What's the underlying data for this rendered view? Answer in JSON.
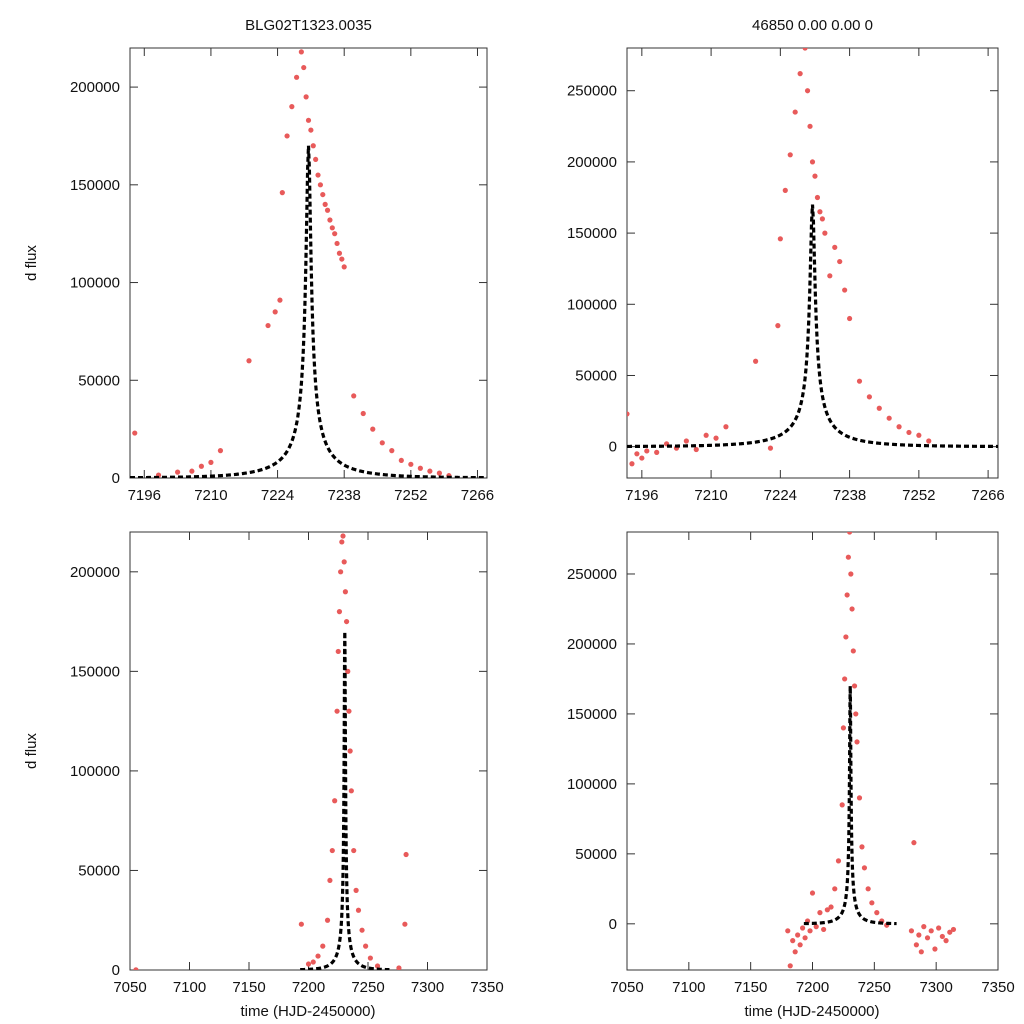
{
  "figure": {
    "top_title_left": "BLG02T1323.0035",
    "top_title_right": "46850  0.00  0.00  0",
    "ylabel": "d flux",
    "xlabel": "time (HJD-2450000)",
    "point_color": "#e85a5a",
    "curve_color": "#000000"
  },
  "chart_data": [
    {
      "id": "top-left",
      "type": "scatter",
      "title": "BLG02T1323.0035",
      "ylabel": "d flux",
      "xlabel": "",
      "xlim": [
        7193,
        7268
      ],
      "ylim": [
        0,
        220000
      ],
      "xticks": [
        7196,
        7210,
        7224,
        7238,
        7252,
        7266
      ],
      "yticks": [
        0,
        50000,
        100000,
        150000,
        200000
      ],
      "model": {
        "t0": 7230.5,
        "tE": 15,
        "u0": 0.032,
        "amp_at_peak": 170000,
        "xrange": [
          7193,
          7268
        ]
      },
      "series": [
        {
          "name": "data",
          "x": [
            7194,
            7199,
            7203,
            7206,
            7208,
            7210,
            7212,
            7218,
            7222,
            7223.5,
            7224.5,
            7225,
            7226,
            7227,
            7228,
            7229,
            7229.5,
            7230,
            7230.5,
            7231,
            7231.5,
            7232,
            7232.5,
            7233,
            7233.5,
            7234,
            7234.5,
            7235,
            7235.5,
            7236,
            7236.5,
            7237,
            7237.5,
            7238,
            7240,
            7242,
            7244,
            7246,
            7248,
            7250,
            7252,
            7254,
            7256,
            7258,
            7260
          ],
          "y": [
            23000,
            1500,
            3000,
            3500,
            6000,
            8000,
            14000,
            60000,
            78000,
            85000,
            91000,
            146000,
            175000,
            190000,
            205000,
            218000,
            210000,
            195000,
            183000,
            178000,
            170000,
            163000,
            155000,
            150000,
            145000,
            140000,
            137000,
            132000,
            128000,
            125000,
            120000,
            115000,
            112000,
            108000,
            42000,
            33000,
            25000,
            18000,
            14000,
            9000,
            7000,
            5000,
            3500,
            2500,
            1200
          ]
        }
      ]
    },
    {
      "id": "top-right",
      "type": "scatter",
      "title": "46850  0.00  0.00  0",
      "ylabel": "",
      "xlabel": "",
      "xlim": [
        7193,
        7268
      ],
      "ylim": [
        -22000,
        280000
      ],
      "xticks": [
        7196,
        7210,
        7224,
        7238,
        7252,
        7266
      ],
      "yticks": [
        0,
        50000,
        100000,
        150000,
        200000,
        250000
      ],
      "model": {
        "t0": 7230.5,
        "tE": 15,
        "u0": 0.032,
        "amp_at_peak": 170000,
        "xrange": [
          7193,
          7268
        ]
      },
      "series": [
        {
          "name": "data",
          "x": [
            7193,
            7194,
            7195,
            7196,
            7197,
            7199,
            7201,
            7203,
            7205,
            7207,
            7209,
            7211,
            7213,
            7219,
            7222,
            7223.5,
            7224,
            7225,
            7226,
            7227,
            7228,
            7229,
            7229.5,
            7230,
            7230.5,
            7231,
            7231.5,
            7232,
            7232.5,
            7233,
            7234,
            7235,
            7236,
            7237,
            7238,
            7240,
            7242,
            7244,
            7246,
            7248,
            7250,
            7252,
            7254
          ],
          "y": [
            23000,
            -12000,
            -5000,
            -8000,
            -3000,
            -4000,
            2000,
            -1000,
            4000,
            -2000,
            8000,
            6000,
            14000,
            60000,
            -1000,
            85000,
            146000,
            180000,
            205000,
            235000,
            262000,
            280000,
            250000,
            225000,
            200000,
            190000,
            175000,
            165000,
            160000,
            150000,
            120000,
            140000,
            130000,
            110000,
            90000,
            46000,
            35000,
            27000,
            20000,
            14000,
            10000,
            8000,
            4000
          ]
        }
      ]
    },
    {
      "id": "bottom-left",
      "type": "scatter",
      "title": "",
      "ylabel": "d flux",
      "xlabel": "time (HJD-2450000)",
      "xlim": [
        7050,
        7350
      ],
      "ylim": [
        0,
        220000
      ],
      "xticks": [
        7050,
        7100,
        7150,
        7200,
        7250,
        7300,
        7350
      ],
      "yticks": [
        0,
        50000,
        100000,
        150000,
        200000
      ],
      "model": {
        "t0": 7230.5,
        "tE": 15,
        "u0": 0.032,
        "amp_at_peak": 170000,
        "xrange": [
          7193,
          7268
        ]
      },
      "series": [
        {
          "name": "data",
          "x": [
            7055,
            7194,
            7200,
            7204,
            7208,
            7212,
            7216,
            7218,
            7220,
            7222,
            7224,
            7225,
            7226,
            7227,
            7228,
            7229,
            7230,
            7231,
            7232,
            7233,
            7234,
            7235,
            7236,
            7238,
            7240,
            7242,
            7245,
            7248,
            7252,
            7258,
            7276,
            7281,
            7282
          ],
          "y": [
            100,
            23000,
            3000,
            4000,
            7000,
            12000,
            25000,
            45000,
            60000,
            85000,
            130000,
            160000,
            180000,
            200000,
            215000,
            218000,
            205000,
            190000,
            175000,
            150000,
            130000,
            110000,
            90000,
            60000,
            40000,
            30000,
            20000,
            12000,
            6000,
            2000,
            1000,
            23000,
            58000
          ]
        }
      ]
    },
    {
      "id": "bottom-right",
      "type": "scatter",
      "title": "",
      "ylabel": "",
      "xlabel": "time (HJD-2450000)",
      "xlim": [
        7050,
        7350
      ],
      "ylim": [
        -33000,
        280000
      ],
      "xticks": [
        7050,
        7100,
        7150,
        7200,
        7250,
        7300,
        7350
      ],
      "yticks": [
        0,
        50000,
        100000,
        150000,
        200000,
        250000
      ],
      "model": {
        "t0": 7230.5,
        "tE": 15,
        "u0": 0.032,
        "amp_at_peak": 170000,
        "xrange": [
          7193,
          7268
        ]
      },
      "series": [
        {
          "name": "data",
          "x": [
            7180,
            7182,
            7184,
            7186,
            7188,
            7190,
            7192,
            7194,
            7196,
            7198,
            7200,
            7203,
            7206,
            7209,
            7212,
            7215,
            7218,
            7221,
            7224,
            7225,
            7226,
            7227,
            7228,
            7229,
            7230,
            7231,
            7232,
            7233,
            7234,
            7235,
            7236,
            7238,
            7240,
            7242,
            7245,
            7248,
            7252,
            7256,
            7260,
            7280,
            7282,
            7284,
            7286,
            7288,
            7290,
            7293,
            7296,
            7299,
            7302,
            7305,
            7308,
            7311,
            7314
          ],
          "y": [
            -5000,
            -30000,
            -12000,
            -20000,
            -8000,
            -15000,
            -3000,
            -10000,
            2000,
            -5000,
            22000,
            -2000,
            8000,
            -4000,
            10000,
            12000,
            25000,
            45000,
            85000,
            140000,
            175000,
            205000,
            235000,
            262000,
            280000,
            250000,
            225000,
            195000,
            170000,
            150000,
            130000,
            90000,
            55000,
            40000,
            25000,
            15000,
            8000,
            2000,
            -1000,
            -5000,
            58000,
            -15000,
            -8000,
            -20000,
            -2000,
            -10000,
            -5000,
            -18000,
            -3000,
            -9000,
            -12000,
            -6000,
            -4000
          ]
        }
      ]
    }
  ]
}
